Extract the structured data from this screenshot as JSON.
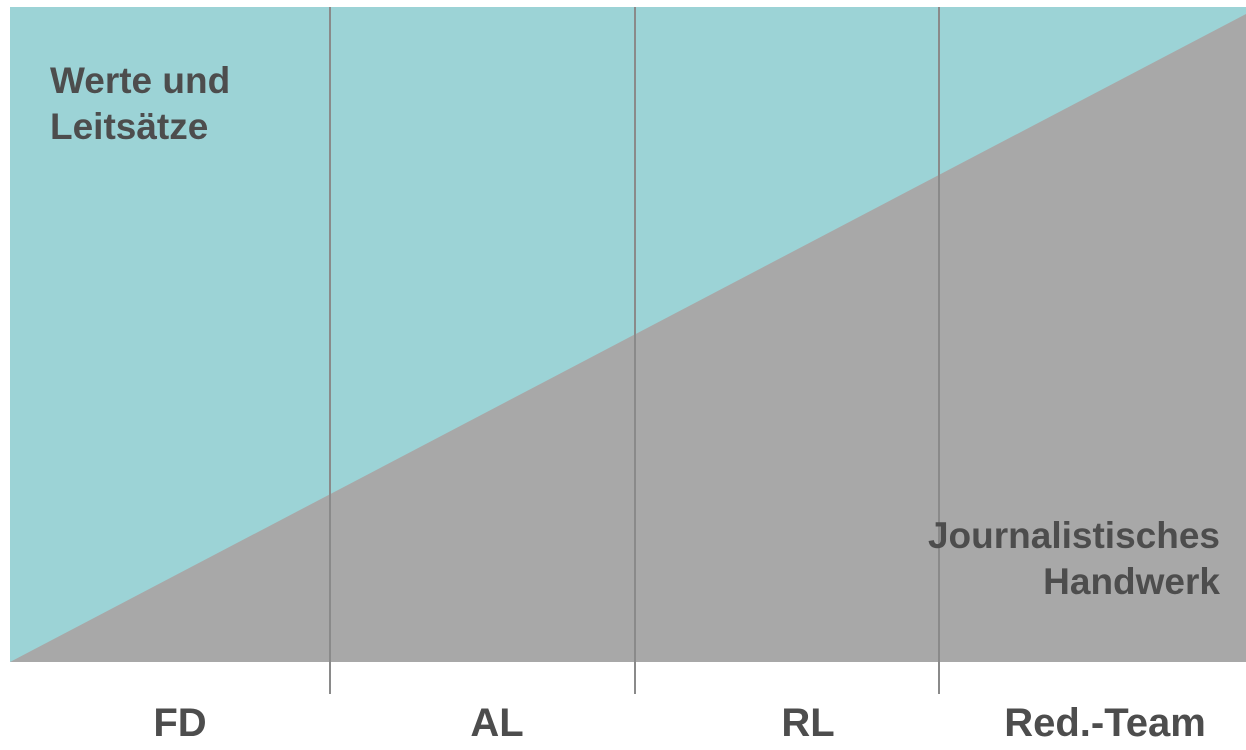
{
  "diagram": {
    "regions": {
      "top": {
        "lines": [
          "Werte und",
          "Leitsätze"
        ],
        "color": "#9cd3d6"
      },
      "bottom": {
        "lines": [
          "Journalistisches",
          "Handwerk"
        ],
        "color": "#a8a8a8"
      }
    },
    "divider_color": "#8a8a8a",
    "text_color": "#4d4d4d",
    "columns": [
      "FD",
      "AL",
      "RL",
      "Red.-Team"
    ]
  }
}
